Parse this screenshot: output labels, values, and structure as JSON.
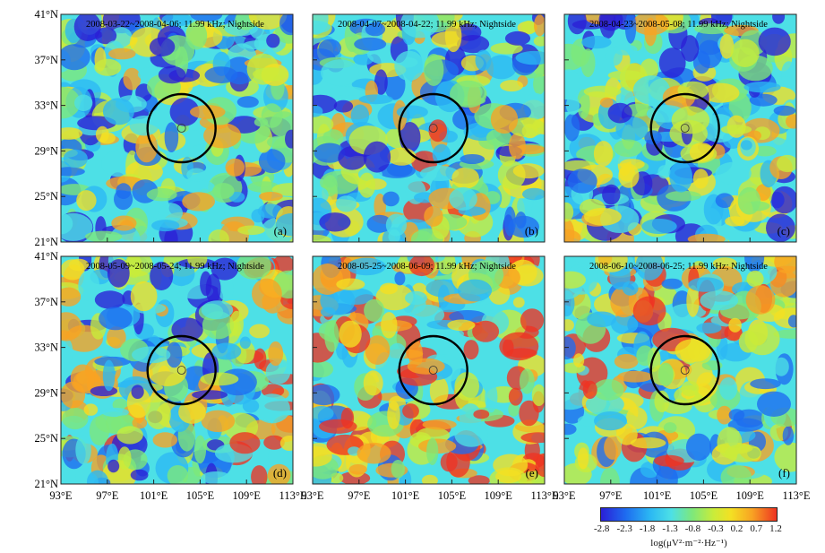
{
  "panels": [
    {
      "date_range": "2008-03-22~2008-04-06; 11.99 kHz; Nightside",
      "letter": "(a)"
    },
    {
      "date_range": "2008-04-07~2008-04-22; 11.99 kHz; Nightside",
      "letter": "(b)"
    },
    {
      "date_range": "2008-04-23~2008-05-08; 11.99 kHz; Nightside",
      "letter": "(c)"
    },
    {
      "date_range": "2008-05-09~2008-05-24; 11.99 kHz; Nightside",
      "letter": "(d)"
    },
    {
      "date_range": "2008-05-25~2008-06-09; 11.99 kHz; Nightside",
      "letter": "(e)"
    },
    {
      "date_range": "2008-06-10~2008-06-25; 11.99 kHz; Nightside",
      "letter": "(f)"
    }
  ],
  "lat_labels": [
    "41°N",
    "37°N",
    "33°N",
    "29°N",
    "25°N",
    "21°N"
  ],
  "lat_values": [
    41,
    37,
    33,
    29,
    25,
    21
  ],
  "lon_labels": [
    "93°E",
    "97°E",
    "101°E",
    "105°E",
    "109°E",
    "113°E"
  ],
  "lon_values": [
    93,
    97,
    101,
    105,
    109,
    113
  ],
  "epicenter": {
    "lon": 103.4,
    "lat": 31.0
  },
  "colorbar": {
    "ticks": [
      "-2.8",
      "-2.3",
      "-1.8",
      "-1.3",
      "-0.8",
      "-0.3",
      "0.2",
      "0.7",
      "1.2"
    ],
    "unit": "log(μV²·m⁻²·Hz⁻¹)",
    "colors": [
      "#2a1fd6",
      "#1e6cf0",
      "#2bb8f3",
      "#4de0e6",
      "#7ee87a",
      "#c9ec3a",
      "#f4e023",
      "#f8a323",
      "#ee3322"
    ]
  }
}
